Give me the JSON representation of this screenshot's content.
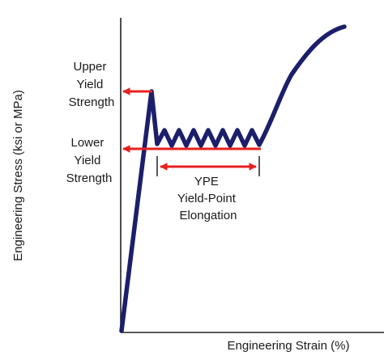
{
  "diagram": {
    "x_axis_label": "Engineering Strain (%)",
    "y_axis_label": "Engineering Stress (ksi or MPa)",
    "upper_yield": [
      "Upper",
      "Yield",
      "Strength"
    ],
    "lower_yield": [
      "Lower",
      "Yield",
      "Strength"
    ],
    "ype": [
      "YPE",
      "Yield-Point",
      "Elongation"
    ]
  },
  "colors": {
    "curve": "#1b1f6b",
    "arrow": "#e8201e",
    "axis": "#222222",
    "text": "#1a1a1a"
  }
}
